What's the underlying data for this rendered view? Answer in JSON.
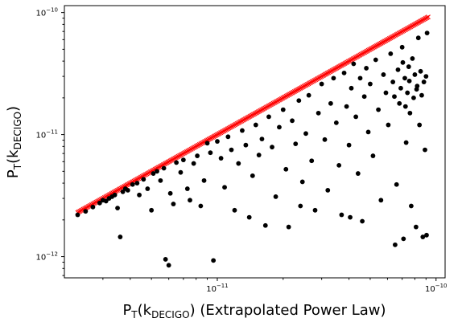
{
  "chart_data": {
    "type": "scatter",
    "title": "",
    "xlabel": {
      "base": "P",
      "sub1": "T",
      "mid": "(k",
      "sub2": "DECIGO",
      "tail": ") (Extrapolated Power Law)"
    },
    "ylabel": {
      "base": "P",
      "sub1": "T",
      "mid": "(k",
      "sub2": "DECIGO",
      "tail": ")"
    },
    "x_scale": "log",
    "y_scale": "log",
    "xlim": [
      2e-12,
      1.1e-10
    ],
    "ylim": [
      6.7e-13,
      1.14e-10
    ],
    "x_ticks": [
      {
        "value": 1e-11,
        "base": "10",
        "exp": "−11"
      },
      {
        "value": 1e-10,
        "base": "10",
        "exp": "−10"
      }
    ],
    "y_ticks": [
      {
        "value": 1e-12,
        "base": "10",
        "exp": "−12"
      },
      {
        "value": 1e-11,
        "base": "10",
        "exp": "−11"
      },
      {
        "value": 1e-10,
        "base": "10",
        "exp": "−10"
      }
    ],
    "grid": false,
    "legend": "none",
    "series": [
      {
        "marker": "x",
        "color": "#ff0000",
        "relation": "y = x",
        "x_range": [
          2.3e-12,
          9.2e-11
        ],
        "count": 300
      },
      {
        "marker": "o",
        "color": "#000000",
        "points": [
          [
            2.3e-12,
            2.2e-12
          ],
          [
            2.5e-12,
            2.35e-12
          ],
          [
            2.7e-12,
            2.55e-12
          ],
          [
            2.9e-12,
            2.75e-12
          ],
          [
            3e-12,
            2.9e-12
          ],
          [
            3.1e-12,
            2.85e-12
          ],
          [
            3.2e-12,
            3e-12
          ],
          [
            3.3e-12,
            3.1e-12
          ],
          [
            3.4e-12,
            3.2e-12
          ],
          [
            3.5e-12,
            2.5e-12
          ],
          [
            3.6e-12,
            1.45e-12
          ],
          [
            3.7e-12,
            3.4e-12
          ],
          [
            3.8e-12,
            3.6e-12
          ],
          [
            3.9e-12,
            3.5e-12
          ],
          [
            4.1e-12,
            3.9e-12
          ],
          [
            4.3e-12,
            4e-12
          ],
          [
            4.4e-12,
            3.2e-12
          ],
          [
            4.6e-12,
            4.3e-12
          ],
          [
            4.8e-12,
            3.6e-12
          ],
          [
            5e-12,
            2.4e-12
          ],
          [
            5.1e-12,
            4.8e-12
          ],
          [
            5.3e-12,
            5e-12
          ],
          [
            5.5e-12,
            4.2e-12
          ],
          [
            5.7e-12,
            5.3e-12
          ],
          [
            5.8e-12,
            9.5e-13
          ],
          [
            6e-12,
            8.5e-13
          ],
          [
            6.1e-12,
            3.3e-12
          ],
          [
            6.3e-12,
            2.7e-12
          ],
          [
            6.5e-12,
            5.9e-12
          ],
          [
            6.8e-12,
            4.9e-12
          ],
          [
            7e-12,
            6.2e-12
          ],
          [
            7.3e-12,
            3.6e-12
          ],
          [
            7.5e-12,
            2.9e-12
          ],
          [
            7.8e-12,
            5.8e-12
          ],
          [
            8.1e-12,
            6.7e-12
          ],
          [
            8.4e-12,
            2.6e-12
          ],
          [
            8.7e-12,
            4.2e-12
          ],
          [
            9e-12,
            8.5e-12
          ],
          [
            9.3e-12,
            7.1e-12
          ],
          [
            9.6e-12,
            9.3e-13
          ],
          [
            1e-11,
            8.8e-12
          ],
          [
            1.04e-11,
            6.4e-12
          ],
          [
            1.08e-11,
            3.7e-12
          ],
          [
            1.12e-11,
            9.6e-12
          ],
          [
            1.16e-11,
            7.5e-12
          ],
          [
            1.2e-11,
            2.4e-12
          ],
          [
            1.25e-11,
            5.8e-12
          ],
          [
            1.3e-11,
            1.08e-11
          ],
          [
            1.35e-11,
            8.2e-12
          ],
          [
            1.4e-11,
            2.1e-12
          ],
          [
            1.45e-11,
            4.6e-12
          ],
          [
            1.5e-11,
            1.2e-11
          ],
          [
            1.55e-11,
            6.8e-12
          ],
          [
            1.6e-11,
            9.2e-12
          ],
          [
            1.66e-11,
            1.8e-12
          ],
          [
            1.72e-11,
            1.4e-11
          ],
          [
            1.78e-11,
            7.9e-12
          ],
          [
            1.85e-11,
            3.1e-12
          ],
          [
            1.92e-11,
            1.15e-11
          ],
          [
            2e-11,
            1.6e-11
          ],
          [
            2.06e-11,
            5.2e-12
          ],
          [
            2.12e-11,
            1.75e-12
          ],
          [
            2.2e-11,
            1.3e-11
          ],
          [
            2.28e-11,
            8.4e-12
          ],
          [
            2.36e-11,
            1.9e-11
          ],
          [
            2.45e-11,
            4.1e-12
          ],
          [
            2.54e-11,
            1.02e-11
          ],
          [
            2.62e-11,
            2.1e-11
          ],
          [
            2.7e-11,
            6.1e-12
          ],
          [
            2.8e-11,
            2.4e-12
          ],
          [
            2.9e-11,
            1.5e-11
          ],
          [
            3e-11,
            2.6e-11
          ],
          [
            3.1e-11,
            9.1e-12
          ],
          [
            3.2e-11,
            3.5e-12
          ],
          [
            3.3e-11,
            1.8e-11
          ],
          [
            3.4e-11,
            2.9e-11
          ],
          [
            3.5e-11,
            1.25e-11
          ],
          [
            3.6e-11,
            5.6e-12
          ],
          [
            3.7e-11,
            2.2e-12
          ],
          [
            3.8e-11,
            3.2e-11
          ],
          [
            3.9e-11,
            1.7e-11
          ],
          [
            4e-11,
            8.2e-12
          ],
          [
            4.1e-11,
            2.4e-11
          ],
          [
            4.2e-11,
            3.8e-11
          ],
          [
            4.3e-11,
            1.4e-11
          ],
          [
            4.4e-11,
            4.8e-12
          ],
          [
            4.5e-11,
            2.9e-11
          ],
          [
            4.6e-11,
            1.95e-12
          ],
          [
            4.7e-11,
            2.05e-11
          ],
          [
            4.8e-11,
            3.5e-11
          ],
          [
            4.9e-11,
            1.05e-11
          ],
          [
            5e-11,
            2.6e-11
          ],
          [
            5.15e-11,
            6.7e-12
          ],
          [
            5.3e-11,
            4.1e-11
          ],
          [
            5.45e-11,
            1.6e-11
          ],
          [
            5.6e-11,
            2.9e-12
          ],
          [
            5.75e-11,
            3.1e-11
          ],
          [
            5.9e-11,
            2.2e-11
          ],
          [
            6.05e-11,
            1.2e-11
          ],
          [
            6.2e-11,
            4.6e-11
          ],
          [
            6.35e-11,
            2.7e-11
          ],
          [
            6.5e-11,
            1.25e-12
          ],
          [
            6.6e-11,
            3.9e-12
          ],
          [
            6.7e-11,
            3.4e-11
          ],
          [
            6.8e-11,
            1.8e-11
          ],
          [
            6.9e-11,
            2.4e-11
          ],
          [
            7e-11,
            5.2e-11
          ],
          [
            7.1e-11,
            1.4e-12
          ],
          [
            7.2e-11,
            2.9e-11
          ],
          [
            7.3e-11,
            8.6e-12
          ],
          [
            7.4e-11,
            2.2e-11
          ],
          [
            7.5e-11,
            3.6e-11
          ],
          [
            7.6e-11,
            1.5e-11
          ],
          [
            7.7e-11,
            2.6e-12
          ],
          [
            7.8e-11,
            4.2e-11
          ],
          [
            7.9e-11,
            2e-11
          ],
          [
            8e-11,
            3.1e-11
          ],
          [
            8.1e-11,
            1.75e-12
          ],
          [
            8.2e-11,
            2.5e-11
          ],
          [
            8.3e-11,
            6.2e-11
          ],
          [
            8.4e-11,
            1.2e-11
          ],
          [
            8.5e-11,
            3.3e-11
          ],
          [
            8.6e-11,
            2.1e-11
          ],
          [
            8.7e-11,
            1.45e-12
          ],
          [
            8.8e-11,
            2.7e-11
          ],
          [
            8.9e-11,
            7.5e-12
          ],
          [
            9e-11,
            3e-11
          ],
          [
            9.05e-11,
            1.5e-12
          ],
          [
            9.1e-11,
            6.8e-11
          ],
          [
            4.05e-11,
            2.1e-12
          ],
          [
            2.4e-11,
            2.6e-12
          ],
          [
            7.05e-11,
            3.9e-11
          ],
          [
            7.55e-11,
            2.75e-11
          ],
          [
            8.15e-11,
            2.35e-11
          ],
          [
            6.45e-11,
            2.05e-11
          ],
          [
            7.25e-11,
            1.7e-11
          ]
        ]
      }
    ]
  }
}
